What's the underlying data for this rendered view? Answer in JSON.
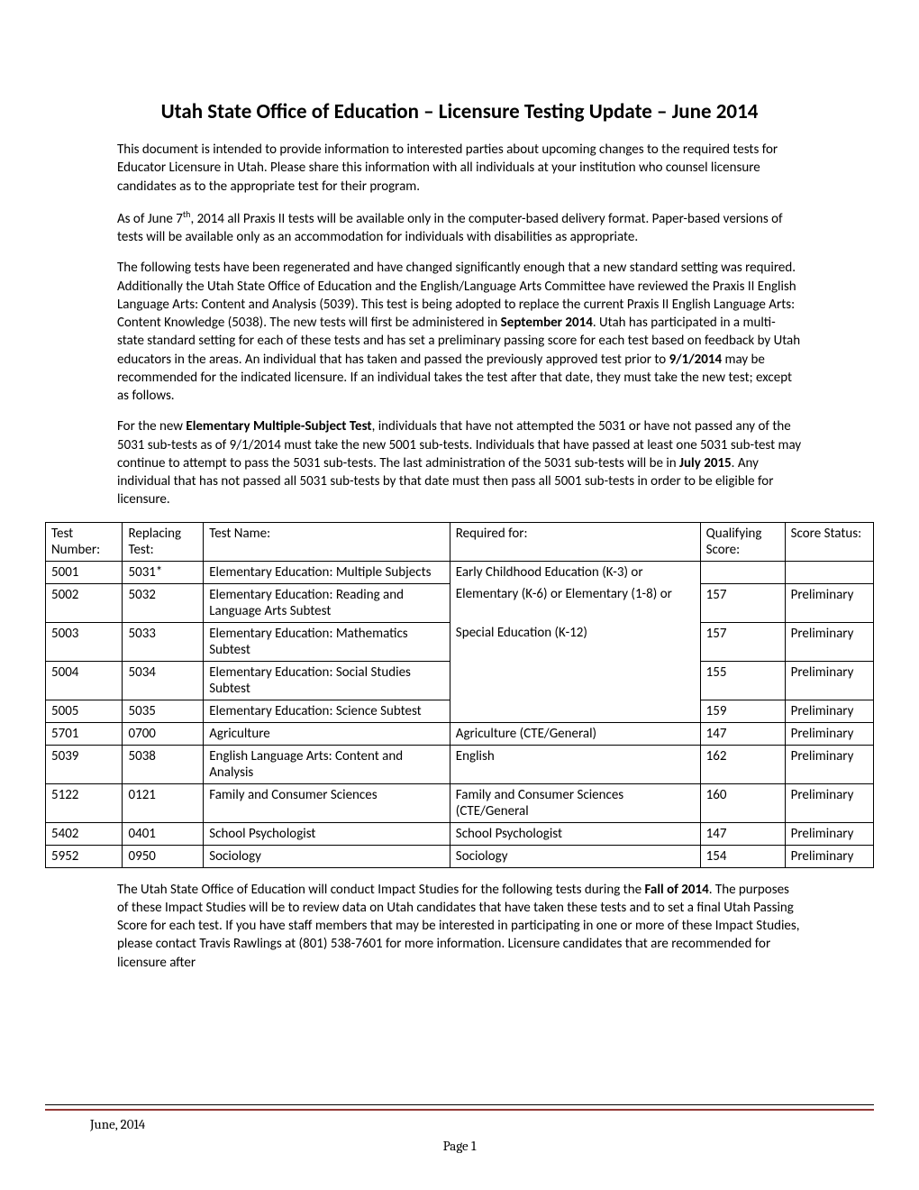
{
  "title": "Utah State Office of Education – Licensure Testing Update – June 2014",
  "para1_a": "This document is intended to provide information to interested parties about upcoming changes to the required tests for Educator Licensure in Utah.  Please share this information with all individuals at your institution who counsel licensure candidates as to the appropriate test for their program.",
  "para2_a": "As of June 7",
  "para2_sup": "th",
  "para2_b": ", 2014 all Praxis II tests will be available only in the computer-based delivery format.  Paper-based versions of tests will be available only as an accommodation for individuals with disabilities as appropriate.",
  "para3_a": "The following tests have been regenerated and have changed significantly enough that a new standard setting was required.  Additionally the Utah State Office of Education and the English/Language Arts Committee have reviewed the Praxis II English Language Arts: Content and Analysis (5039).  This test is being adopted to replace the current Praxis II English Language Arts: Content Knowledge (5038).  The new tests will first be administered in ",
  "para3_bold1": "September 2014",
  "para3_b": ".  Utah has participated in a multi-state standard setting for each of these tests and has set a preliminary passing score for each test based on feedback by Utah educators in the areas.  An individual that has taken and passed the previously approved test prior to ",
  "para3_bold2": "9/1/2014",
  "para3_c": " may be recommended for the indicated licensure.  If an individual takes the test after that date, they must take the new test; except as follows.",
  "para4_a": "For the new ",
  "para4_bold1": "Elementary Multiple-Subject Test",
  "para4_b": ", individuals that have not attempted the 5031 or have not passed any of the 5031 sub-tests as of 9/1/2014 must take the new 5001 sub-tests.  Individuals that have passed at least one 5031 sub-test may continue to attempt to pass the 5031 sub-tests.  The last administration of the 5031 sub-tests will be in ",
  "para4_bold2": "July 2015",
  "para4_c": ".  Any individual that has not passed all 5031 sub-tests by that date must then pass all 5001 sub-tests in order to be eligible for licensure.",
  "table": {
    "headers": {
      "test_number": "Test Number:",
      "replacing": "Replacing Test:",
      "test_name": "Test Name:",
      "required_for": "Required for:",
      "qualifying_score": "Qualifying Score:",
      "score_status": "Score Status:"
    },
    "merged_required_1": "Early Childhood Education (K-3) or",
    "merged_required_2": "Elementary (K-6) or Elementary (1-8) or",
    "merged_required_3": "Special Education (K-12)",
    "rows": [
      {
        "num": "5001",
        "repl": "5031*",
        "name": "Elementary Education: Multiple Subjects",
        "score": "",
        "status": ""
      },
      {
        "num": "5002",
        "repl": "5032",
        "name": "Elementary Education: Reading and Language Arts Subtest",
        "score": "157",
        "status": "Preliminary"
      },
      {
        "num": "5003",
        "repl": "5033",
        "name": "Elementary Education: Mathematics Subtest",
        "score": "157",
        "status": "Preliminary"
      },
      {
        "num": "5004",
        "repl": "5034",
        "name": "Elementary Education: Social Studies Subtest",
        "score": "155",
        "status": "Preliminary"
      },
      {
        "num": "5005",
        "repl": "5035",
        "name": "Elementary Education: Science Subtest",
        "score": "159",
        "status": "Preliminary"
      },
      {
        "num": "5701",
        "repl": "0700",
        "name": "Agriculture",
        "req": "Agriculture (CTE/General)",
        "score": "147",
        "status": "Preliminary"
      },
      {
        "num": "5039",
        "repl": "5038",
        "name": "English Language Arts: Content and Analysis",
        "req": "English",
        "score": "162",
        "status": "Preliminary"
      },
      {
        "num": "5122",
        "repl": "0121",
        "name": "Family and Consumer Sciences",
        "req": "Family and Consumer Sciences (CTE/General",
        "score": "160",
        "status": "Preliminary"
      },
      {
        "num": "5402",
        "repl": "0401",
        "name": "School Psychologist",
        "req": "School Psychologist",
        "score": "147",
        "status": "Preliminary"
      },
      {
        "num": "5952",
        "repl": "0950",
        "name": "Sociology",
        "req": "Sociology",
        "score": "154",
        "status": "Preliminary"
      }
    ]
  },
  "para5_a": "The Utah State Office of Education will conduct Impact Studies for the following tests during the ",
  "para5_bold1": "Fall of 2014",
  "para5_b": ".  The purposes of these Impact Studies will be to review data on Utah candidates that have taken these tests and to set a final Utah Passing Score for each test.  If you have staff members that may be interested in participating in one or more of these Impact Studies, please contact Travis Rawlings at (801) 538-7601 for more information.  Licensure candidates that are recommended for licensure after",
  "footer_date": "June, 2014",
  "footer_page": "Page 1"
}
